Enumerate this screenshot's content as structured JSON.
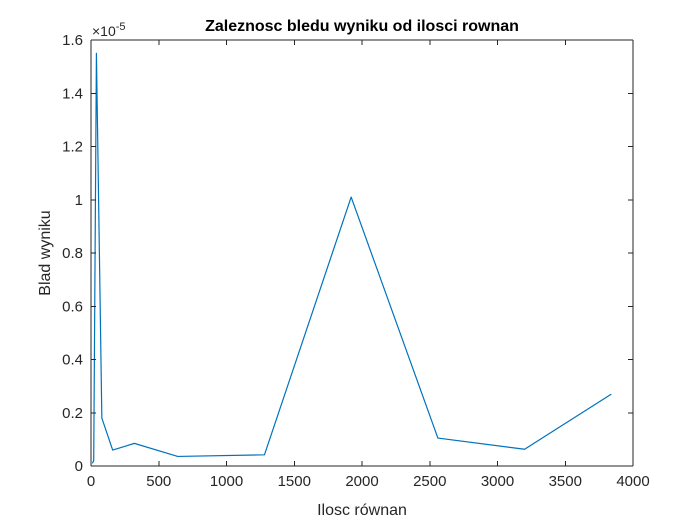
{
  "chart_data": {
    "type": "line",
    "title": "Zaleznosc bledu wyniku od ilosci rownan",
    "xlabel": "Ilosc równan",
    "ylabel": "Blad wyniku",
    "y_multiplier": {
      "base": "×10",
      "exponent": "-5"
    },
    "xlim": [
      0,
      4000
    ],
    "ylim": [
      0,
      1.6
    ],
    "x_ticks": [
      0,
      500,
      1000,
      1500,
      2000,
      2500,
      3000,
      3500,
      4000
    ],
    "x_tick_labels": [
      "0",
      "500",
      "1000",
      "1500",
      "2000",
      "2500",
      "3000",
      "3500",
      "4000"
    ],
    "y_ticks": [
      0,
      0.2,
      0.4,
      0.6,
      0.8,
      1,
      1.2,
      1.4,
      1.6
    ],
    "y_tick_labels": [
      "0",
      "0.2",
      "0.4",
      "0.6",
      "0.8",
      "1",
      "1.2",
      "1.4",
      "1.6"
    ],
    "grid": false,
    "series": [
      {
        "color": "#0072BD",
        "x": [
          10,
          20,
          40,
          80,
          160,
          320,
          640,
          1280,
          1920,
          2560,
          3200,
          3840
        ],
        "y": [
          0.01,
          0.02,
          1.55,
          0.18,
          0.06,
          0.085,
          0.036,
          0.042,
          1.01,
          0.105,
          0.063,
          0.27
        ]
      }
    ]
  }
}
